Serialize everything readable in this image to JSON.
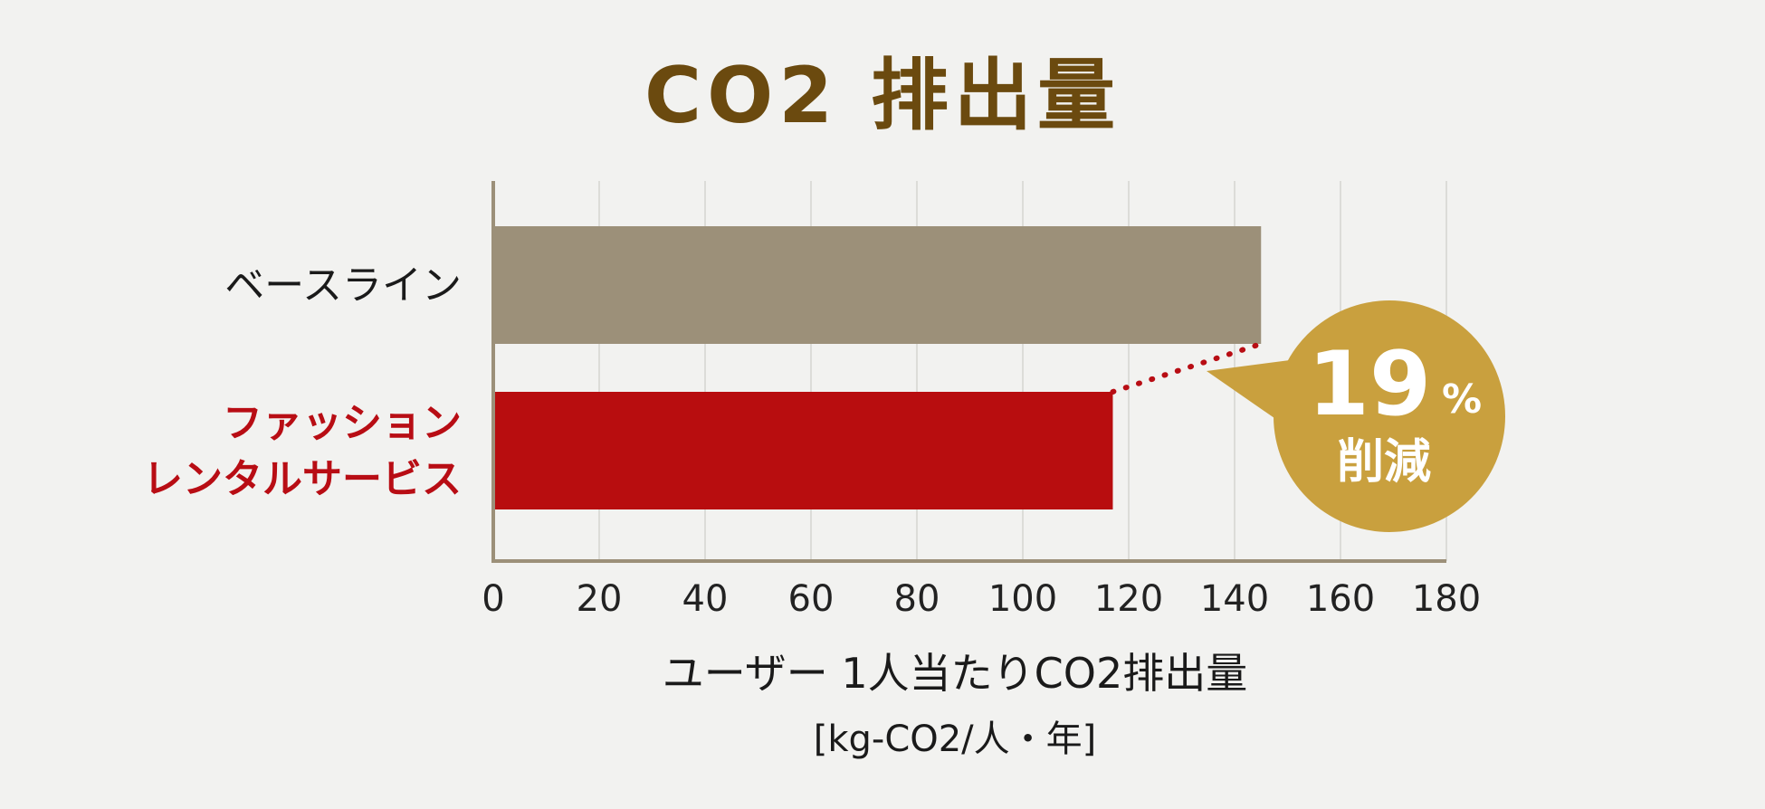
{
  "chart_data": {
    "type": "bar",
    "orientation": "horizontal",
    "title": "CO2 排出量",
    "categories": [
      "ベースライン",
      "ファッション\nレンタルサービス"
    ],
    "category_lines": [
      [
        "ベースライン"
      ],
      [
        "ファッション",
        "レンタルサービス"
      ]
    ],
    "values": [
      145,
      117
    ],
    "bar_colors": [
      "#9c9079",
      "#b80d0f"
    ],
    "label_colors": [
      "#1a1a1a",
      "#b80d14"
    ],
    "xlim": [
      0,
      180
    ],
    "xticks": [
      0,
      20,
      40,
      60,
      80,
      100,
      120,
      140,
      160,
      180
    ],
    "xlabel": "ユーザー 1人当たりCO2排出量",
    "unit": "[kg-CO2/人・年]",
    "grid": true,
    "annotation": {
      "value": "19",
      "suffix": "%",
      "label": "削減",
      "color": "#c9a03e"
    }
  },
  "colors": {
    "background": "#f2f2f0",
    "title": "#6b4a0f",
    "axis": "#9c9079",
    "grid": "#dcdcd8",
    "connector": "#b80d14"
  }
}
